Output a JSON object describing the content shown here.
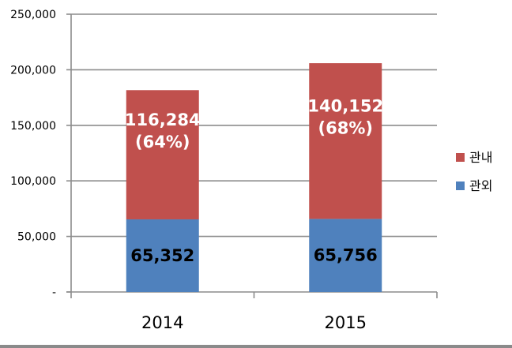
{
  "chart_data": {
    "type": "bar",
    "stacked": true,
    "categories": [
      "2014",
      "2015"
    ],
    "series": [
      {
        "name": "관외",
        "color": "#4f81bd",
        "values": [
          65352,
          65756
        ],
        "data_labels": [
          "65,352",
          "65,756"
        ]
      },
      {
        "name": "관내",
        "color": "#c0504d",
        "values": [
          116284,
          140152
        ],
        "data_labels": [
          "116,284\n(64%)",
          "140,152\n(68%)"
        ]
      }
    ],
    "y_ticks": [
      "-",
      "50,000",
      "100,000",
      "150,000",
      "200,000",
      "250,000"
    ],
    "ylim": [
      0,
      250000
    ],
    "grid": true,
    "legend": "right"
  }
}
